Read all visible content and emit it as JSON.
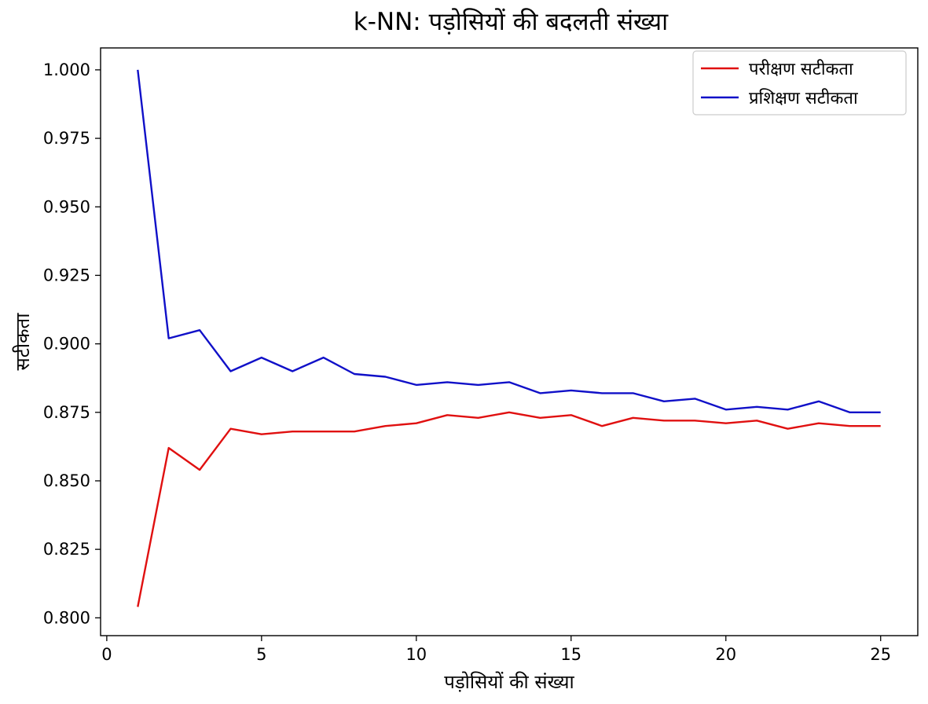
{
  "chart_data": {
    "type": "line",
    "title": "k-NN: पड़ोसियों की बदलती संख्या",
    "xlabel": "पड़ोसियों की संख्या",
    "ylabel": "सटीकता",
    "xlim": [
      -0.2,
      26.2
    ],
    "ylim": [
      0.7935,
      1.008
    ],
    "xticks": [
      0,
      5,
      10,
      15,
      20,
      25
    ],
    "xtick_labels": [
      "0",
      "5",
      "10",
      "15",
      "20",
      "25"
    ],
    "yticks": [
      0.8,
      0.825,
      0.85,
      0.875,
      0.9,
      0.925,
      0.95,
      0.975,
      1.0
    ],
    "ytick_labels": [
      "0.800",
      "0.825",
      "0.850",
      "0.875",
      "0.900",
      "0.925",
      "0.950",
      "0.975",
      "1.000"
    ],
    "grid": false,
    "legend_position": "top-right",
    "x": [
      1,
      2,
      3,
      4,
      5,
      6,
      7,
      8,
      9,
      10,
      11,
      12,
      13,
      14,
      15,
      16,
      17,
      18,
      19,
      20,
      21,
      22,
      23,
      24,
      25
    ],
    "series": [
      {
        "name": "परीक्षण सटीकता",
        "color": "#e01010",
        "values": [
          0.804,
          0.862,
          0.854,
          0.869,
          0.867,
          0.868,
          0.868,
          0.868,
          0.87,
          0.871,
          0.874,
          0.873,
          0.875,
          0.873,
          0.874,
          0.87,
          0.873,
          0.872,
          0.872,
          0.871,
          0.872,
          0.869,
          0.871,
          0.87,
          0.87
        ]
      },
      {
        "name": "प्रशिक्षण सटीकता",
        "color": "#1010c8",
        "values": [
          1.0,
          0.902,
          0.905,
          0.89,
          0.895,
          0.89,
          0.895,
          0.889,
          0.888,
          0.885,
          0.886,
          0.885,
          0.886,
          0.882,
          0.883,
          0.882,
          0.882,
          0.879,
          0.88,
          0.876,
          0.877,
          0.876,
          0.879,
          0.875,
          0.875
        ]
      }
    ]
  }
}
